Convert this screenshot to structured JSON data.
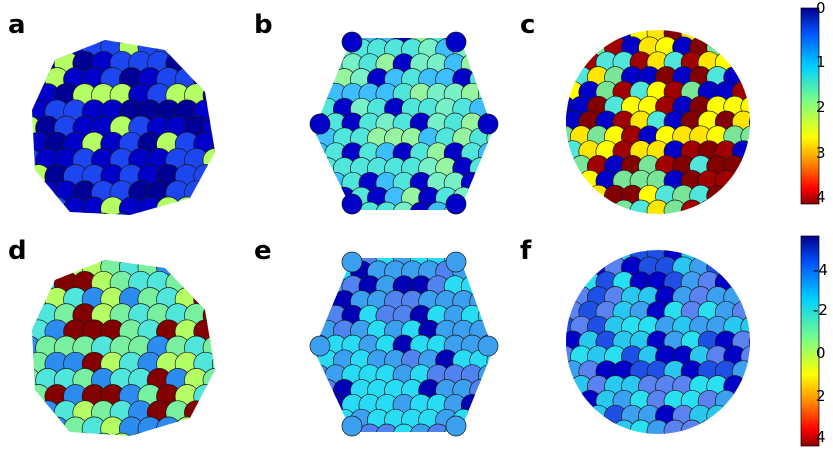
{
  "panels": [
    {
      "label": "a",
      "shape": "icosahedral",
      "colorbar": "top"
    },
    {
      "label": "b",
      "shape": "decahedral",
      "colorbar": "top"
    },
    {
      "label": "c",
      "shape": "spherical",
      "colorbar": "top"
    },
    {
      "label": "d",
      "shape": "icosahedral",
      "colorbar": "bottom"
    },
    {
      "label": "e",
      "shape": "decahedral",
      "colorbar": "bottom"
    },
    {
      "label": "f",
      "shape": "spherical",
      "colorbar": "bottom"
    }
  ],
  "colorbar_top": {
    "ticks": [
      "0",
      "1",
      "2",
      "3",
      "4"
    ],
    "range": [
      0,
      4.3
    ],
    "colors": [
      "#00008b",
      "#0055ff",
      "#00d0ff",
      "#80ff80",
      "#ffff00",
      "#ff8000",
      "#ff0000",
      "#8b0000"
    ]
  },
  "colorbar_bottom": {
    "ticks": [
      "-4",
      "-2",
      "0",
      "2",
      "4"
    ],
    "range": [
      -5.1,
      5.2
    ],
    "colors": [
      "#00008b",
      "#0055ff",
      "#00d0ff",
      "#80ff80",
      "#ffff00",
      "#ff8000",
      "#ff0000",
      "#8b0000"
    ]
  },
  "palettes": {
    "a": [
      "#0000c8",
      "#1c46f0",
      "#0000c8",
      "#b4ff64",
      "#1c46f0",
      "#000096"
    ],
    "b": [
      "#50e6dc",
      "#50e6dc",
      "#3cbeff",
      "#96f5a0",
      "#0000c8",
      "#78f0c8"
    ],
    "c": [
      "#ffff00",
      "#a00000",
      "#78e696",
      "#0000c8",
      "#ffe600",
      "#820000",
      "#50e6dc"
    ],
    "d": [
      "#78f0a0",
      "#78f0a0",
      "#820000",
      "#50e6dc",
      "#2d8cf0",
      "#b4ff64"
    ],
    "e": [
      "#3ca0f0",
      "#28dcf5",
      "#3ca0f0",
      "#28dcf5",
      "#0000b4",
      "#5082f0"
    ],
    "f": [
      "#28c8f0",
      "#3ca0f0",
      "#28e0f0",
      "#0000c8",
      "#5a82f0",
      "#1e50e6"
    ]
  }
}
